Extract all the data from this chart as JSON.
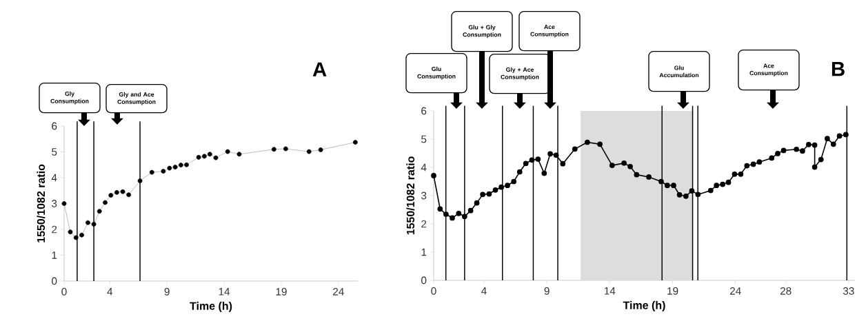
{
  "chart_data": [
    {
      "type": "line",
      "title": "A",
      "xlabel": "Time (h)",
      "ylabel": "1550/1082 ratio",
      "color": "#000000",
      "marker": "circle",
      "line_style": "solid",
      "x": [
        0,
        0.54,
        1.04,
        1.54,
        2.08,
        2.6,
        3.09,
        3.59,
        4.09,
        4.61,
        5.13,
        5.65,
        6.64,
        7.68,
        8.68,
        9.22,
        9.72,
        10.22,
        10.71,
        11.77,
        12.27,
        12.75,
        13.27,
        14.31,
        15.32,
        18.36,
        19.39,
        21.43,
        22.45,
        25.48
      ],
      "values": [
        3.0,
        1.9,
        1.68,
        1.78,
        2.26,
        2.2,
        2.7,
        3.04,
        3.32,
        3.43,
        3.46,
        3.34,
        3.88,
        4.21,
        4.25,
        4.37,
        4.41,
        4.49,
        4.5,
        4.79,
        4.83,
        4.91,
        4.77,
        5.01,
        4.91,
        5.1,
        5.12,
        5.01,
        5.08,
        5.37
      ],
      "xlim": [
        0,
        25.7
      ],
      "ylim": [
        0,
        6
      ],
      "xticks": [
        0,
        4,
        9,
        14,
        19,
        24
      ],
      "yticks": [
        0,
        1,
        2,
        3,
        4,
        5,
        6
      ],
      "ref_lines": [
        {
          "axis": "x",
          "value": 1.14
        },
        {
          "axis": "x",
          "value": 2.6
        },
        {
          "axis": "x",
          "value": 6.64
        }
      ],
      "annotations": [
        "Gly Consumption",
        "Gly and Ace Consumption"
      ]
    },
    {
      "type": "line",
      "title": "B",
      "xlabel": "Time (h)",
      "ylabel": "1550/1082 ratio",
      "color": "#000000",
      "marker": "circle",
      "line_style": "solid",
      "x": [
        0,
        0.51,
        0.98,
        1.48,
        1.99,
        2.46,
        2.94,
        3.43,
        3.9,
        4.41,
        4.91,
        5.38,
        5.87,
        6.37,
        6.84,
        7.33,
        7.81,
        8.3,
        8.79,
        9.27,
        9.74,
        10.27,
        11.23,
        12.22,
        13.22,
        14.19,
        15.14,
        15.63,
        16.14,
        17.11,
        18.09,
        18.58,
        19.08,
        19.55,
        20.06,
        20.53,
        21.02,
        22.03,
        22.49,
        22.98,
        23.44,
        23.93,
        24.42,
        24.91,
        25.42,
        25.9,
        26.88,
        27.36,
        27.83,
        28.85,
        29.33,
        29.82,
        30.3,
        30.3,
        30.8,
        31.3,
        31.79,
        32.27,
        32.78
      ],
      "values": [
        3.71,
        2.53,
        2.34,
        2.21,
        2.37,
        2.26,
        2.47,
        2.74,
        3.04,
        3.06,
        3.2,
        3.3,
        3.36,
        3.5,
        3.84,
        4.14,
        4.26,
        4.29,
        3.79,
        4.48,
        4.43,
        4.13,
        4.65,
        4.89,
        4.82,
        4.07,
        4.15,
        4.03,
        3.74,
        3.66,
        3.5,
        3.36,
        3.36,
        3.03,
        2.98,
        3.17,
        3.04,
        3.18,
        3.36,
        3.4,
        3.47,
        3.76,
        3.76,
        4.06,
        4.11,
        4.19,
        4.33,
        4.49,
        4.6,
        4.64,
        4.58,
        4.81,
        4.79,
        4.01,
        4.28,
        5.02,
        4.82,
        5.11,
        5.16
      ],
      "xlim": [
        0,
        33.5
      ],
      "ylim": [
        0,
        6
      ],
      "xticks": [
        0,
        4,
        9,
        14,
        19,
        24,
        28,
        33
      ],
      "yticks": [
        0,
        1,
        2,
        3,
        4,
        5,
        6
      ],
      "bands": [
        {
          "axis": "x",
          "from": 11.69,
          "to": 20.65,
          "color": "#dddddd"
        }
      ],
      "ref_lines": [
        {
          "axis": "x",
          "value": 0.97
        },
        {
          "axis": "x",
          "value": 2.46
        },
        {
          "axis": "x",
          "value": 5.47
        },
        {
          "axis": "x",
          "value": 7.92
        },
        {
          "axis": "x",
          "value": 9.87
        },
        {
          "axis": "x",
          "value": 18.16
        },
        {
          "axis": "x",
          "value": 20.59
        },
        {
          "axis": "x",
          "value": 21.01
        },
        {
          "axis": "x",
          "value": 32.86
        }
      ],
      "annotations": [
        "Glu Consumption",
        "Glu + Gly Consumption",
        "Gly + Ace Consumption",
        "Ace Consumption",
        "Glu Accumulation",
        "Ace Consumption"
      ]
    }
  ]
}
